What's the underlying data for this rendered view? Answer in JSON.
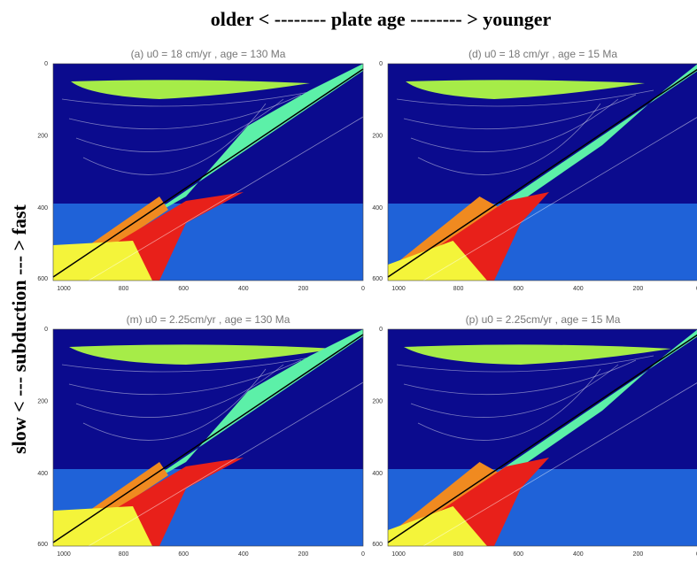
{
  "header": {
    "title": "older < -------- plate age -------- > younger"
  },
  "side_label": "slow < --- subduction --- > fast",
  "axes": {
    "y_tick_labels": [
      "0",
      "200",
      "400",
      "600"
    ],
    "x_tick_labels": [
      "1000",
      "800",
      "600",
      "400",
      "200",
      "0"
    ]
  },
  "panels": [
    {
      "title": "(a) u0 =  18 cm/yr ,  age = 130 Ma"
    },
    {
      "title": "(d) u0 =  18 cm/yr ,  age =  15 Ma"
    },
    {
      "title": "(m) u0 = 2.25cm/yr ,  age = 130 Ma"
    },
    {
      "title": "(p) u0 = 2.25cm/yr ,  age =  15 Ma"
    }
  ]
}
